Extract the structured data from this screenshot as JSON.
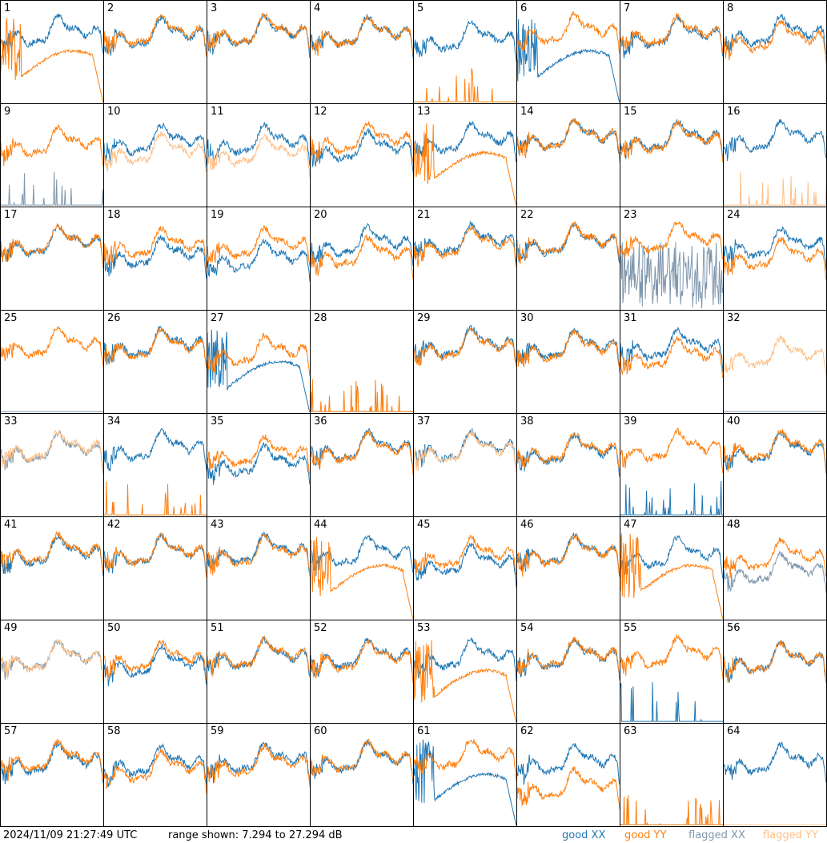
{
  "footer": {
    "timestamp": "2024/11/09 21:27:49 UTC",
    "range_text": "range shown: 7.294 to 27.294 dB"
  },
  "chart_data": {
    "type": "line",
    "title": "",
    "ylim": [
      7.294,
      27.294
    ],
    "y_unit": "dB",
    "grid": false,
    "legend": {
      "placement": "bottom-right",
      "entries": [
        {
          "key": "good_xx",
          "label": "good XX",
          "color": "#1f77b4"
        },
        {
          "key": "good_yy",
          "label": "good YY",
          "color": "#ff7f0e"
        },
        {
          "key": "flagged_xx",
          "label": "flagged XX",
          "color": "#7f97ad"
        },
        {
          "key": "flagged_yy",
          "label": "flagged YY",
          "color": "#ffbf86"
        }
      ]
    },
    "panels": [
      {
        "label": "1",
        "xx": {
          "s": "good",
          "p": "normal",
          "lv": 0.78
        },
        "yy": {
          "s": "good",
          "p": "dropout",
          "lv": 0.45
        }
      },
      {
        "label": "2",
        "xx": {
          "s": "good",
          "p": "normal",
          "lv": 0.76
        },
        "yy": {
          "s": "good",
          "p": "normal",
          "lv": 0.78
        }
      },
      {
        "label": "3",
        "xx": {
          "s": "good",
          "p": "normal",
          "lv": 0.78
        },
        "yy": {
          "s": "good",
          "p": "normal",
          "lv": 0.79
        }
      },
      {
        "label": "4",
        "xx": {
          "s": "good",
          "p": "normal",
          "lv": 0.77
        },
        "yy": {
          "s": "good",
          "p": "normal",
          "lv": 0.77
        }
      },
      {
        "label": "5",
        "xx": {
          "s": "good",
          "p": "normal",
          "lv": 0.72
        },
        "yy": {
          "s": "good",
          "p": "dead",
          "lv": 0.02
        }
      },
      {
        "label": "6",
        "xx": {
          "s": "good",
          "p": "dropout",
          "lv": 0.45
        },
        "yy": {
          "s": "good",
          "p": "normal",
          "lv": 0.8
        }
      },
      {
        "label": "7",
        "xx": {
          "s": "good",
          "p": "normal",
          "lv": 0.76
        },
        "yy": {
          "s": "good",
          "p": "normal",
          "lv": 0.78
        }
      },
      {
        "label": "8",
        "xx": {
          "s": "good",
          "p": "normal",
          "lv": 0.78
        },
        "yy": {
          "s": "good",
          "p": "normal",
          "lv": 0.72
        }
      },
      {
        "label": "9",
        "xx": {
          "s": "flagged",
          "p": "dead",
          "lv": 0.02
        },
        "yy": {
          "s": "good",
          "p": "normal",
          "lv": 0.7
        }
      },
      {
        "label": "10",
        "xx": {
          "s": "good",
          "p": "normal",
          "lv": 0.72
        },
        "yy": {
          "s": "flagged",
          "p": "normal",
          "lv": 0.62
        }
      },
      {
        "label": "11",
        "xx": {
          "s": "good",
          "p": "normal",
          "lv": 0.72
        },
        "yy": {
          "s": "flagged",
          "p": "normal",
          "lv": 0.6
        }
      },
      {
        "label": "12",
        "xx": {
          "s": "good",
          "p": "normal",
          "lv": 0.65
        },
        "yy": {
          "s": "good",
          "p": "normal",
          "lv": 0.74
        }
      },
      {
        "label": "13",
        "xx": {
          "s": "good",
          "p": "normal",
          "lv": 0.74
        },
        "yy": {
          "s": "good",
          "p": "dropout",
          "lv": 0.52
        }
      },
      {
        "label": "14",
        "xx": {
          "s": "good",
          "p": "normal",
          "lv": 0.77
        },
        "yy": {
          "s": "good",
          "p": "normal",
          "lv": 0.77
        }
      },
      {
        "label": "15",
        "xx": {
          "s": "good",
          "p": "normal",
          "lv": 0.76
        },
        "yy": {
          "s": "good",
          "p": "normal",
          "lv": 0.74
        }
      },
      {
        "label": "16",
        "xx": {
          "s": "good",
          "p": "normal",
          "lv": 0.76
        },
        "yy": {
          "s": "flagged",
          "p": "dead",
          "lv": 0.02
        }
      },
      {
        "label": "17",
        "xx": {
          "s": "good",
          "p": "normal",
          "lv": 0.74
        },
        "yy": {
          "s": "good",
          "p": "normal",
          "lv": 0.75
        }
      },
      {
        "label": "18",
        "xx": {
          "s": "good",
          "p": "normal",
          "lv": 0.62
        },
        "yy": {
          "s": "good",
          "p": "normal",
          "lv": 0.72
        }
      },
      {
        "label": "19",
        "xx": {
          "s": "good",
          "p": "normal",
          "lv": 0.58
        },
        "yy": {
          "s": "good",
          "p": "normal",
          "lv": 0.72
        }
      },
      {
        "label": "20",
        "xx": {
          "s": "good",
          "p": "normal",
          "lv": 0.74
        },
        "yy": {
          "s": "good",
          "p": "normal",
          "lv": 0.62
        }
      },
      {
        "label": "21",
        "xx": {
          "s": "good",
          "p": "normal",
          "lv": 0.76
        },
        "yy": {
          "s": "good",
          "p": "normal",
          "lv": 0.73
        }
      },
      {
        "label": "22",
        "xx": {
          "s": "good",
          "p": "normal",
          "lv": 0.75
        },
        "yy": {
          "s": "good",
          "p": "normal",
          "lv": 0.76
        }
      },
      {
        "label": "23",
        "xx": {
          "s": "flagged",
          "p": "dead",
          "lv": 0.3
        },
        "yy": {
          "s": "good",
          "p": "normal",
          "lv": 0.78
        }
      },
      {
        "label": "24",
        "xx": {
          "s": "good",
          "p": "normal",
          "lv": 0.72
        },
        "yy": {
          "s": "good",
          "p": "normal",
          "lv": 0.6
        }
      },
      {
        "label": "25",
        "xx": {
          "s": "flagged",
          "p": "dead",
          "lv": 0.0
        },
        "yy": {
          "s": "good",
          "p": "normal",
          "lv": 0.76
        }
      },
      {
        "label": "26",
        "xx": {
          "s": "good",
          "p": "normal",
          "lv": 0.76
        },
        "yy": {
          "s": "good",
          "p": "normal",
          "lv": 0.74
        }
      },
      {
        "label": "27",
        "xx": {
          "s": "good",
          "p": "dropout",
          "lv": 0.4
        },
        "yy": {
          "s": "good",
          "p": "normal",
          "lv": 0.68
        }
      },
      {
        "label": "28",
        "xx": {
          "s": "flagged",
          "p": "dead",
          "lv": 0.0
        },
        "yy": {
          "s": "good",
          "p": "dead",
          "lv": 0.02
        }
      },
      {
        "label": "29",
        "xx": {
          "s": "good",
          "p": "normal",
          "lv": 0.76
        },
        "yy": {
          "s": "good",
          "p": "normal",
          "lv": 0.74
        }
      },
      {
        "label": "30",
        "xx": {
          "s": "good",
          "p": "normal",
          "lv": 0.74
        },
        "yy": {
          "s": "good",
          "p": "normal",
          "lv": 0.72
        }
      },
      {
        "label": "31",
        "xx": {
          "s": "good",
          "p": "normal",
          "lv": 0.74
        },
        "yy": {
          "s": "good",
          "p": "normal",
          "lv": 0.64
        }
      },
      {
        "label": "32",
        "xx": {
          "s": "flagged",
          "p": "dead",
          "lv": 0.0
        },
        "yy": {
          "s": "flagged",
          "p": "normal",
          "lv": 0.65
        }
      },
      {
        "label": "33",
        "xx": {
          "s": "flagged",
          "p": "normal",
          "lv": 0.74
        },
        "yy": {
          "s": "flagged",
          "p": "normal",
          "lv": 0.76
        }
      },
      {
        "label": "34",
        "xx": {
          "s": "good",
          "p": "normal",
          "lv": 0.76
        },
        "yy": {
          "s": "good",
          "p": "dead",
          "lv": 0.02
        }
      },
      {
        "label": "35",
        "xx": {
          "s": "good",
          "p": "normal",
          "lv": 0.6
        },
        "yy": {
          "s": "good",
          "p": "normal",
          "lv": 0.7
        }
      },
      {
        "label": "36",
        "xx": {
          "s": "good",
          "p": "normal",
          "lv": 0.76
        },
        "yy": {
          "s": "good",
          "p": "normal",
          "lv": 0.74
        }
      },
      {
        "label": "37",
        "xx": {
          "s": "good",
          "p": "normal",
          "lv": 0.76
        },
        "yy": {
          "s": "flagged",
          "p": "normal",
          "lv": 0.74
        }
      },
      {
        "label": "38",
        "xx": {
          "s": "good",
          "p": "normal",
          "lv": 0.72
        },
        "yy": {
          "s": "good",
          "p": "normal",
          "lv": 0.74
        }
      },
      {
        "label": "39",
        "xx": {
          "s": "good",
          "p": "dead",
          "lv": 0.02
        },
        "yy": {
          "s": "good",
          "p": "normal",
          "lv": 0.76
        }
      },
      {
        "label": "40",
        "xx": {
          "s": "good",
          "p": "normal",
          "lv": 0.74
        },
        "yy": {
          "s": "good",
          "p": "normal",
          "lv": 0.76
        }
      },
      {
        "label": "41",
        "xx": {
          "s": "good",
          "p": "normal",
          "lv": 0.74
        },
        "yy": {
          "s": "good",
          "p": "normal",
          "lv": 0.76
        }
      },
      {
        "label": "42",
        "xx": {
          "s": "good",
          "p": "normal",
          "lv": 0.74
        },
        "yy": {
          "s": "good",
          "p": "normal",
          "lv": 0.75
        }
      },
      {
        "label": "43",
        "xx": {
          "s": "good",
          "p": "normal",
          "lv": 0.76
        },
        "yy": {
          "s": "good",
          "p": "normal",
          "lv": 0.74
        }
      },
      {
        "label": "44",
        "xx": {
          "s": "good",
          "p": "normal",
          "lv": 0.74
        },
        "yy": {
          "s": "good",
          "p": "dropout",
          "lv": 0.55
        }
      },
      {
        "label": "45",
        "xx": {
          "s": "good",
          "p": "normal",
          "lv": 0.64
        },
        "yy": {
          "s": "good",
          "p": "normal",
          "lv": 0.72
        }
      },
      {
        "label": "46",
        "xx": {
          "s": "good",
          "p": "normal",
          "lv": 0.75
        },
        "yy": {
          "s": "good",
          "p": "normal",
          "lv": 0.74
        }
      },
      {
        "label": "47",
        "xx": {
          "s": "good",
          "p": "normal",
          "lv": 0.72
        },
        "yy": {
          "s": "good",
          "p": "dropout",
          "lv": 0.55
        }
      },
      {
        "label": "48",
        "xx": {
          "s": "flagged",
          "p": "normal",
          "lv": 0.55
        },
        "yy": {
          "s": "good",
          "p": "normal",
          "lv": 0.7
        }
      },
      {
        "label": "49",
        "xx": {
          "s": "flagged",
          "p": "normal",
          "lv": 0.72
        },
        "yy": {
          "s": "flagged",
          "p": "normal",
          "lv": 0.72
        }
      },
      {
        "label": "50",
        "xx": {
          "s": "good",
          "p": "normal",
          "lv": 0.66
        },
        "yy": {
          "s": "good",
          "p": "normal",
          "lv": 0.72
        }
      },
      {
        "label": "51",
        "xx": {
          "s": "good",
          "p": "normal",
          "lv": 0.74
        },
        "yy": {
          "s": "good",
          "p": "normal",
          "lv": 0.75
        }
      },
      {
        "label": "52",
        "xx": {
          "s": "good",
          "p": "normal",
          "lv": 0.74
        },
        "yy": {
          "s": "good",
          "p": "normal",
          "lv": 0.72
        }
      },
      {
        "label": "53",
        "xx": {
          "s": "good",
          "p": "normal",
          "lv": 0.74
        },
        "yy": {
          "s": "good",
          "p": "dropout",
          "lv": 0.45
        }
      },
      {
        "label": "54",
        "xx": {
          "s": "good",
          "p": "normal",
          "lv": 0.74
        },
        "yy": {
          "s": "good",
          "p": "normal",
          "lv": 0.75
        }
      },
      {
        "label": "55",
        "xx": {
          "s": "good",
          "p": "dead",
          "lv": 0.05
        },
        "yy": {
          "s": "good",
          "p": "normal",
          "lv": 0.76
        }
      },
      {
        "label": "56",
        "xx": {
          "s": "good",
          "p": "normal",
          "lv": 0.7
        },
        "yy": {
          "s": "good",
          "p": "normal",
          "lv": 0.7
        }
      },
      {
        "label": "57",
        "xx": {
          "s": "good",
          "p": "normal",
          "lv": 0.72
        },
        "yy": {
          "s": "good",
          "p": "normal",
          "lv": 0.75
        }
      },
      {
        "label": "58",
        "xx": {
          "s": "good",
          "p": "normal",
          "lv": 0.7
        },
        "yy": {
          "s": "good",
          "p": "normal",
          "lv": 0.64
        }
      },
      {
        "label": "59",
        "xx": {
          "s": "good",
          "p": "normal",
          "lv": 0.74
        },
        "yy": {
          "s": "good",
          "p": "normal",
          "lv": 0.7
        }
      },
      {
        "label": "60",
        "xx": {
          "s": "good",
          "p": "normal",
          "lv": 0.74
        },
        "yy": {
          "s": "good",
          "p": "normal",
          "lv": 0.75
        }
      },
      {
        "label": "61",
        "xx": {
          "s": "good",
          "p": "dropout",
          "lv": 0.42
        },
        "yy": {
          "s": "good",
          "p": "normal",
          "lv": 0.78
        }
      },
      {
        "label": "62",
        "xx": {
          "s": "good",
          "p": "normal",
          "lv": 0.72
        },
        "yy": {
          "s": "good",
          "p": "normal",
          "lv": 0.45
        }
      },
      {
        "label": "63",
        "xx": {
          "s": "flagged",
          "p": "dead",
          "lv": 0.0
        },
        "yy": {
          "s": "good",
          "p": "dead",
          "lv": 0.02
        }
      },
      {
        "label": "64",
        "xx": {
          "s": "good",
          "p": "normal",
          "lv": 0.72
        },
        "yy": {
          "s": "flagged",
          "p": "dead",
          "lv": 0.0
        }
      }
    ]
  }
}
